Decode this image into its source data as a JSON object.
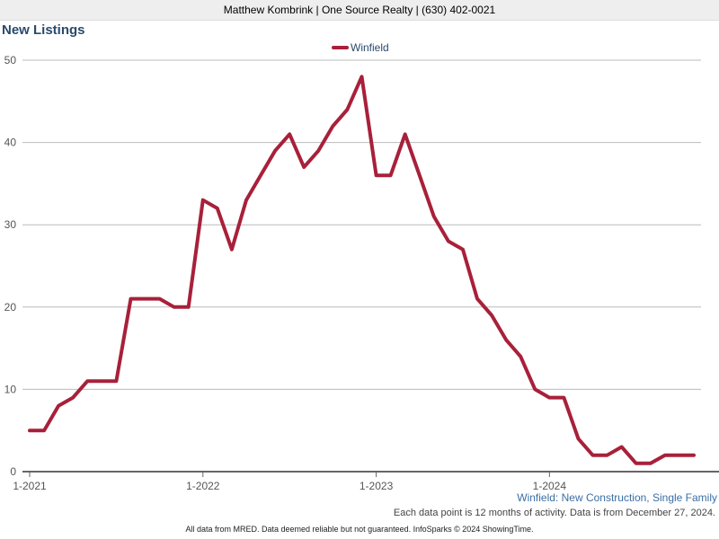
{
  "header": {
    "text": "Matthew Kombrink | One Source Realty | (630) 402-0021"
  },
  "title": "New Listings",
  "subtitle": "Winfield: New Construction, Single Family",
  "note": "Each data point is 12 months of activity. Data is from December 27, 2024.",
  "footer": "All data from MRED. Data deemed reliable but not guaranteed. InfoSparks © 2024 ShowingTime.",
  "colors": {
    "series": "#a8203a",
    "title": "#2b4a6b",
    "grid": "#bbbbbb"
  },
  "chart_data": {
    "type": "line",
    "title": "New Listings",
    "xlabel": "",
    "ylabel": "",
    "ylim": [
      0,
      50
    ],
    "yticks": [
      0,
      10,
      20,
      30,
      40,
      50
    ],
    "xtick_labels": [
      "1-2021",
      "1-2022",
      "1-2023",
      "1-2024"
    ],
    "xtick_indices": [
      0,
      12,
      24,
      36
    ],
    "legend": "top-center",
    "series": [
      {
        "name": "Winfield",
        "values": [
          5,
          5,
          8,
          9,
          11,
          11,
          11,
          21,
          21,
          21,
          20,
          20,
          33,
          32,
          27,
          33,
          36,
          39,
          41,
          37,
          39,
          42,
          44,
          48,
          36,
          36,
          41,
          36,
          31,
          28,
          27,
          21,
          19,
          16,
          14,
          10,
          9,
          9,
          4,
          2,
          2,
          3,
          1,
          1,
          2,
          2,
          2
        ]
      }
    ]
  }
}
